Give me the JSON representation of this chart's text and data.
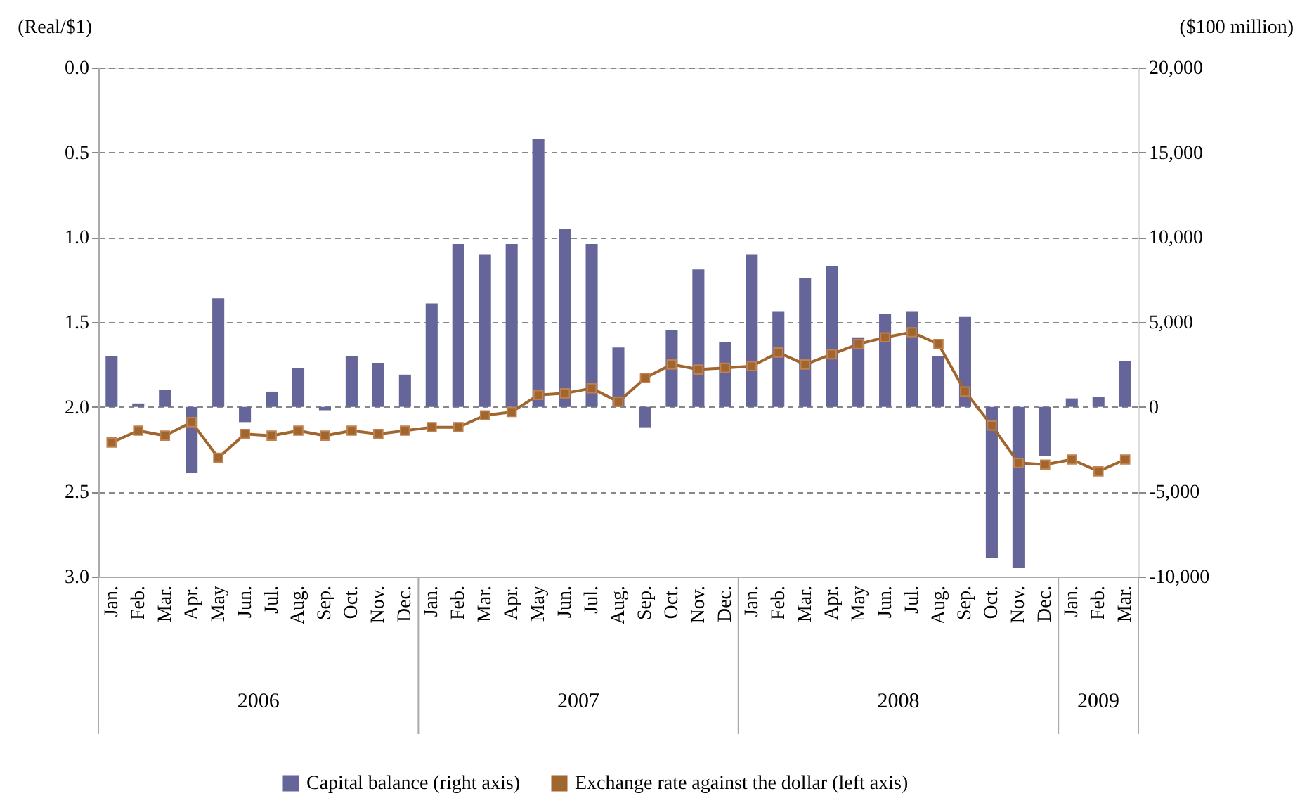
{
  "chart_data": {
    "type": "bar",
    "ylabel": "(Real/$1)",
    "y2label": "($100 million)",
    "categories": [
      "Jan.",
      "Feb.",
      "Mar.",
      "Apr.",
      "May",
      "Jun.",
      "Jul.",
      "Aug.",
      "Sep.",
      "Oct.",
      "Nov.",
      "Dec.",
      "Jan.",
      "Feb.",
      "Mar.",
      "Apr.",
      "May",
      "Jun.",
      "Jul.",
      "Aug.",
      "Sep.",
      "Oct.",
      "Nov.",
      "Dec.",
      "Jan.",
      "Feb.",
      "Mar.",
      "Apr.",
      "May",
      "Jun.",
      "Jul.",
      "Aug.",
      "Sep.",
      "Oct.",
      "Nov.",
      "Dec.",
      "Jan.",
      "Feb.",
      "Mar."
    ],
    "annotations": [
      "2006",
      "2007",
      "2008",
      "2009"
    ],
    "series": [
      {
        "name": "Capital balance (right axis)",
        "axis": "y2",
        "color": "#65659a",
        "values": [
          3000,
          200,
          1000,
          -3900,
          6400,
          -900,
          900,
          2300,
          -200,
          3000,
          2600,
          1900,
          6100,
          9600,
          9000,
          9600,
          15800,
          10500,
          9600,
          3500,
          -1200,
          4500,
          8100,
          3800,
          9000,
          5600,
          7600,
          8300,
          4100,
          5500,
          5600,
          3000,
          5300,
          -8900,
          -9500,
          -2900,
          500,
          600,
          2700
        ]
      },
      {
        "name": "Exchange rate against the dollar (left axis)",
        "type": "line",
        "color": "#a0662e",
        "values": [
          2.21,
          2.14,
          2.17,
          2.09,
          2.3,
          2.16,
          2.17,
          2.14,
          2.17,
          2.14,
          2.16,
          2.14,
          2.12,
          2.12,
          2.05,
          2.03,
          1.93,
          1.92,
          1.89,
          1.97,
          1.83,
          1.75,
          1.78,
          1.77,
          1.76,
          1.68,
          1.75,
          1.69,
          1.63,
          1.59,
          1.56,
          1.63,
          1.91,
          2.11,
          2.33,
          2.34,
          2.31,
          2.38,
          2.31
        ]
      }
    ],
    "ylim": [
      3.0,
      0.0
    ],
    "yticks": [
      {
        "value": 0,
        "label": "0.0"
      },
      0.5,
      {
        "value": 1,
        "label": "1.0"
      },
      1.5,
      {
        "value": 2,
        "label": "2.0"
      },
      2.5,
      {
        "value": 3,
        "label": "3.0"
      }
    ],
    "y2lim": [
      -10000,
      20000
    ],
    "y2ticks": [
      {
        "value": -10000,
        "label": "-10,000"
      },
      {
        "value": -5000,
        "label": "-5,000"
      },
      0,
      {
        "value": 5000,
        "label": "5,000"
      },
      {
        "value": 10000,
        "label": "10,000"
      },
      {
        "value": 15000,
        "label": "15,000"
      },
      {
        "value": 20000,
        "label": "20,000"
      }
    ],
    "grid": "y",
    "legend": "bottom",
    "marker": "square",
    "line_style": "solid"
  }
}
